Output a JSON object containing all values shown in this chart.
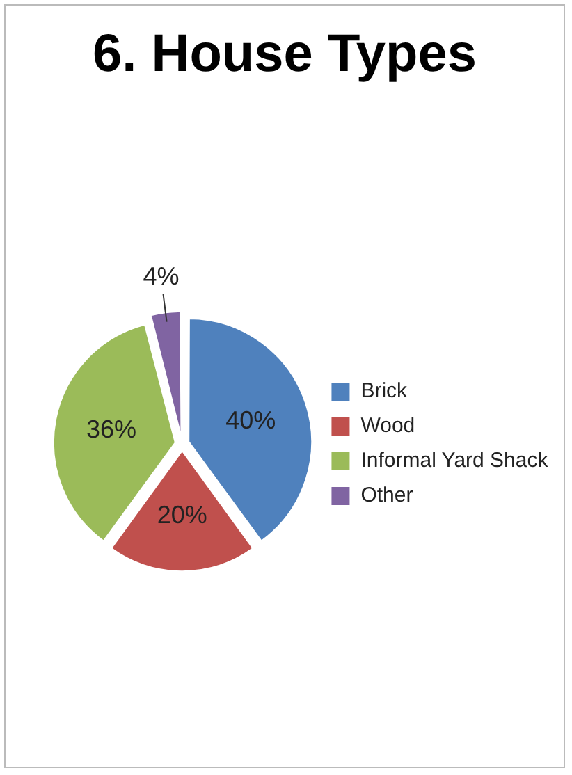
{
  "chart_data": {
    "type": "pie",
    "title": "6. House Types",
    "categories": [
      "Brick",
      "Wood",
      "Informal Yard Shack",
      "Other"
    ],
    "values": [
      40,
      20,
      36,
      4
    ],
    "colors": [
      "#4f81bd",
      "#c0504d",
      "#9bbb59",
      "#8064a2"
    ],
    "value_labels": [
      "40%",
      "20%",
      "36%",
      "4%"
    ],
    "legend": "right"
  }
}
